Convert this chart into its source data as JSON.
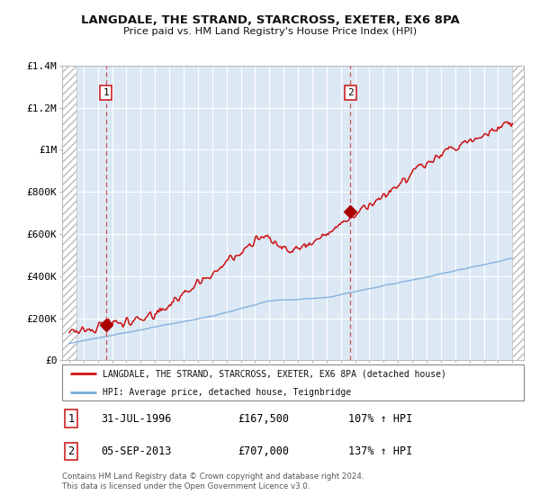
{
  "title": "LANGDALE, THE STRAND, STARCROSS, EXETER, EX6 8PA",
  "subtitle": "Price paid vs. HM Land Registry's House Price Index (HPI)",
  "ylim": [
    0,
    1400000
  ],
  "yticks": [
    0,
    200000,
    400000,
    600000,
    800000,
    1000000,
    1200000,
    1400000
  ],
  "ytick_labels": [
    "£0",
    "£200K",
    "£400K",
    "£600K",
    "£800K",
    "£1M",
    "£1.2M",
    "£1.4M"
  ],
  "sale1_year": 1996.58,
  "sale1_price": 167500,
  "sale1_date": "31-JUL-1996",
  "sale1_amount": "£167,500",
  "sale1_hpi": "107% ↑ HPI",
  "sale2_year": 2013.67,
  "sale2_price": 707000,
  "sale2_date": "05-SEP-2013",
  "sale2_amount": "£707,000",
  "sale2_hpi": "137% ↑ HPI",
  "hpi_line_color": "#7aacdc",
  "price_line_color": "#cc1111",
  "sale_dot_color": "#aa0000",
  "dashed_line_color": "#cc4444",
  "legend_label_price": "LANGDALE, THE STRAND, STARCROSS, EXETER, EX6 8PA (detached house)",
  "legend_label_hpi": "HPI: Average price, detached house, Teignbridge",
  "footer": "Contains HM Land Registry data © Crown copyright and database right 2024.\nThis data is licensed under the Open Government Licence v3.0.",
  "plot_bg_color": "#dde8f5",
  "fig_bg_color": "#ffffff",
  "grid_color": "#ffffff",
  "hatch_color": "#bbbbbb"
}
